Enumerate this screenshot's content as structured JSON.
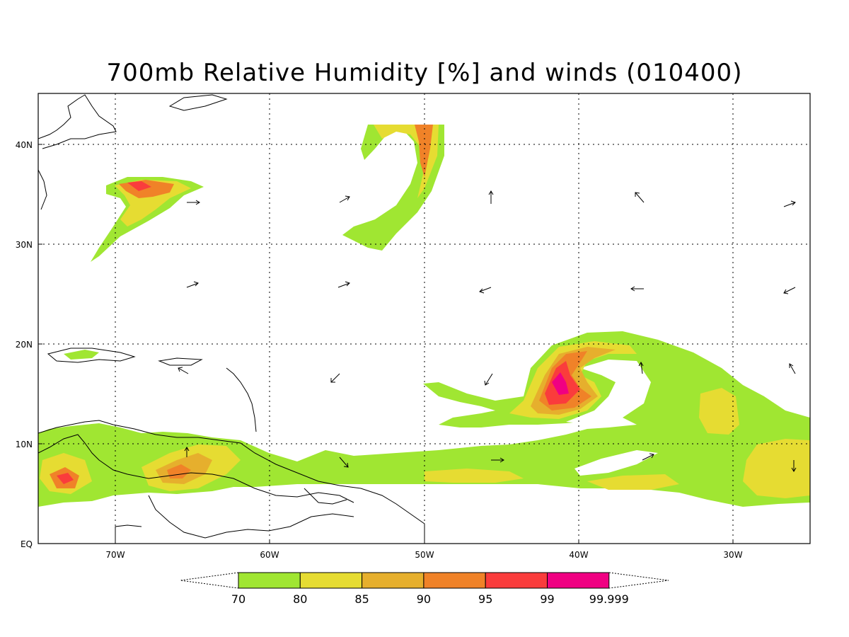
{
  "title": "700mb Relative Humidity [%] and winds (010400)",
  "lat_labels": [
    "EQ",
    "10N",
    "20N",
    "30N",
    "40N"
  ],
  "lon_labels": [
    "70W",
    "60W",
    "50W",
    "40W",
    "30W"
  ],
  "colorbar": {
    "levels": [
      "70",
      "80",
      "85",
      "90",
      "95",
      "99",
      "99.999"
    ],
    "colors": [
      "#a0e632",
      "#e6dc32",
      "#e6af2d",
      "#f08228",
      "#fa3c3c",
      "#f00082"
    ]
  },
  "map": {
    "extent": {
      "lon_min": -75,
      "lon_max": -25,
      "lat_min": 0,
      "lat_max": 45
    },
    "background": "#ffffff"
  }
}
